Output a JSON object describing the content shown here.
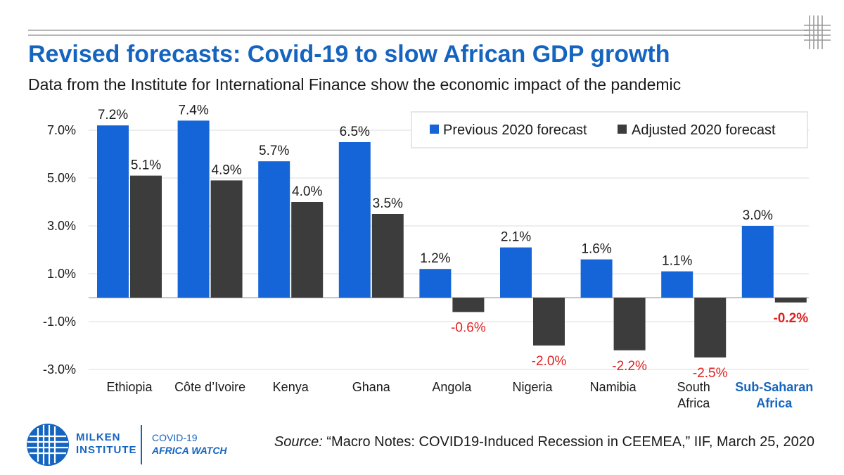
{
  "header": {
    "title": "Revised forecasts: Covid-19 to slow African GDP growth",
    "subtitle": "Data from the Institute for International Finance show the economic impact of the pandemic"
  },
  "chart_data": {
    "type": "bar",
    "categories": [
      "Ethiopia",
      "Côte d'Ivoire",
      "Kenya",
      "Ghana",
      "Angola",
      "Nigeria",
      "Namibia",
      "South Africa",
      "Sub-Saharan Africa"
    ],
    "category_lines": [
      [
        "Ethiopia"
      ],
      [
        "Côte d’Ivoire"
      ],
      [
        "Kenya"
      ],
      [
        "Ghana"
      ],
      [
        "Angola"
      ],
      [
        "Nigeria"
      ],
      [
        "Namibia"
      ],
      [
        "South",
        "Africa"
      ],
      [
        "Sub-Saharan",
        "Africa"
      ]
    ],
    "highlight_category": "Sub-Saharan Africa",
    "series": [
      {
        "name": "Previous 2020 forecast",
        "values": [
          7.2,
          7.4,
          5.7,
          6.5,
          1.2,
          2.1,
          1.6,
          1.1,
          3.0
        ],
        "color": "#1565d8"
      },
      {
        "name": "Adjusted 2020 forecast",
        "values": [
          5.1,
          4.9,
          4.0,
          3.5,
          -0.6,
          -2.0,
          -2.2,
          -2.5,
          -0.2
        ],
        "color": "#3c3c3c"
      }
    ],
    "data_labels": [
      [
        "7.2%",
        "7.4%",
        "5.7%",
        "6.5%",
        "1.2%",
        "2.1%",
        "1.6%",
        "1.1%",
        "3.0%"
      ],
      [
        "5.1%",
        "4.9%",
        "4.0%",
        "3.5%",
        "-0.6%",
        "-2.0%",
        "-2.2%",
        "-2.5%",
        "-0.2%"
      ]
    ],
    "y_ticks": [
      -3.0,
      -1.0,
      1.0,
      3.0,
      5.0,
      7.0
    ],
    "y_tick_labels": [
      "-3.0%",
      "-1.0%",
      "1.0%",
      "3.0%",
      "5.0%",
      "7.0%"
    ],
    "ylim": [
      -3.0,
      7.0
    ],
    "grid": true,
    "legend_position": "top-right",
    "negative_label_color": "#e02020",
    "highlight_color": "#1565c0",
    "xlabel": "",
    "ylabel": ""
  },
  "footer": {
    "brand_line1": "MILKEN",
    "brand_line2": "INSTITUTE",
    "project_line1": "COVID-19",
    "project_line2": "AFRICA WATCH",
    "source_label": "Source:",
    "source_text": "“Macro Notes: COVID19-Induced Recession in CEEMEA,” IIF, March 25, 2020"
  },
  "colors": {
    "brand": "#1565c0"
  },
  "icons": {
    "logo": "milken-globe-logo-icon",
    "corner": "corner-grid-mark-icon"
  }
}
